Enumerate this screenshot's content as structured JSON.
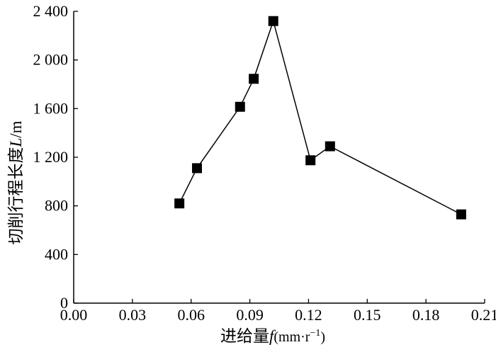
{
  "chart_data": {
    "type": "line",
    "title": "",
    "xlabel": {
      "prefix": "进给量",
      "symbol": "f",
      "unit_open": "(mm·r",
      "unit_sup": "−1",
      "unit_close": ")"
    },
    "ylabel": {
      "prefix": "切削行程长度",
      "symbol": "L",
      "unit": "/m"
    },
    "xlim": [
      0,
      0.21
    ],
    "ylim": [
      0,
      2400
    ],
    "xticks": [
      0.0,
      0.03,
      0.06,
      0.09,
      0.12,
      0.15,
      0.18,
      0.21
    ],
    "xtick_labels": [
      "0.00",
      "0.03",
      "0.06",
      "0.09",
      "0.12",
      "0.15",
      "0.18",
      "0.21"
    ],
    "yticks": [
      0,
      400,
      800,
      1200,
      1600,
      2000,
      2400
    ],
    "ytick_labels": [
      "0",
      "400",
      "800",
      "1 200",
      "1 600",
      "2 000",
      "2 400"
    ],
    "grid": false,
    "legend": "none",
    "marker": "square",
    "line_color": "#000000",
    "marker_color": "#000000",
    "series": [
      {
        "x": [
          0.054,
          0.063,
          0.085,
          0.092,
          0.102,
          0.121,
          0.131,
          0.198
        ],
        "y": [
          820,
          1110,
          1615,
          1845,
          2320,
          1175,
          1290,
          730
        ]
      }
    ]
  }
}
